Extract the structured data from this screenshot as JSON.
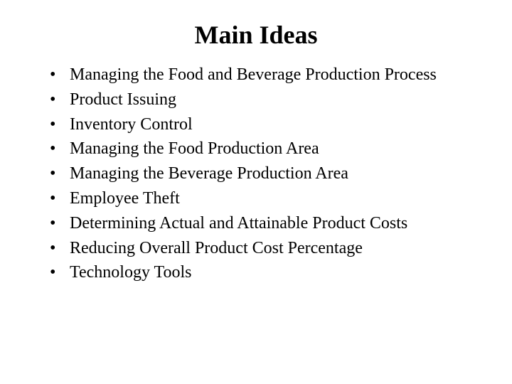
{
  "title": "Main Ideas",
  "title_fontsize": 36,
  "title_weight": "bold",
  "body_fontsize": 24,
  "font_family": "Times New Roman",
  "text_color": "#000000",
  "background_color": "#ffffff",
  "bullets": [
    "Managing the Food and Beverage Production Process",
    "Product Issuing",
    "Inventory Control",
    "Managing the Food Production Area",
    "Managing the Beverage Production Area",
    "Employee Theft",
    "Determining Actual and Attainable Product Costs",
    "Reducing Overall Product Cost Percentage",
    "Technology Tools"
  ]
}
